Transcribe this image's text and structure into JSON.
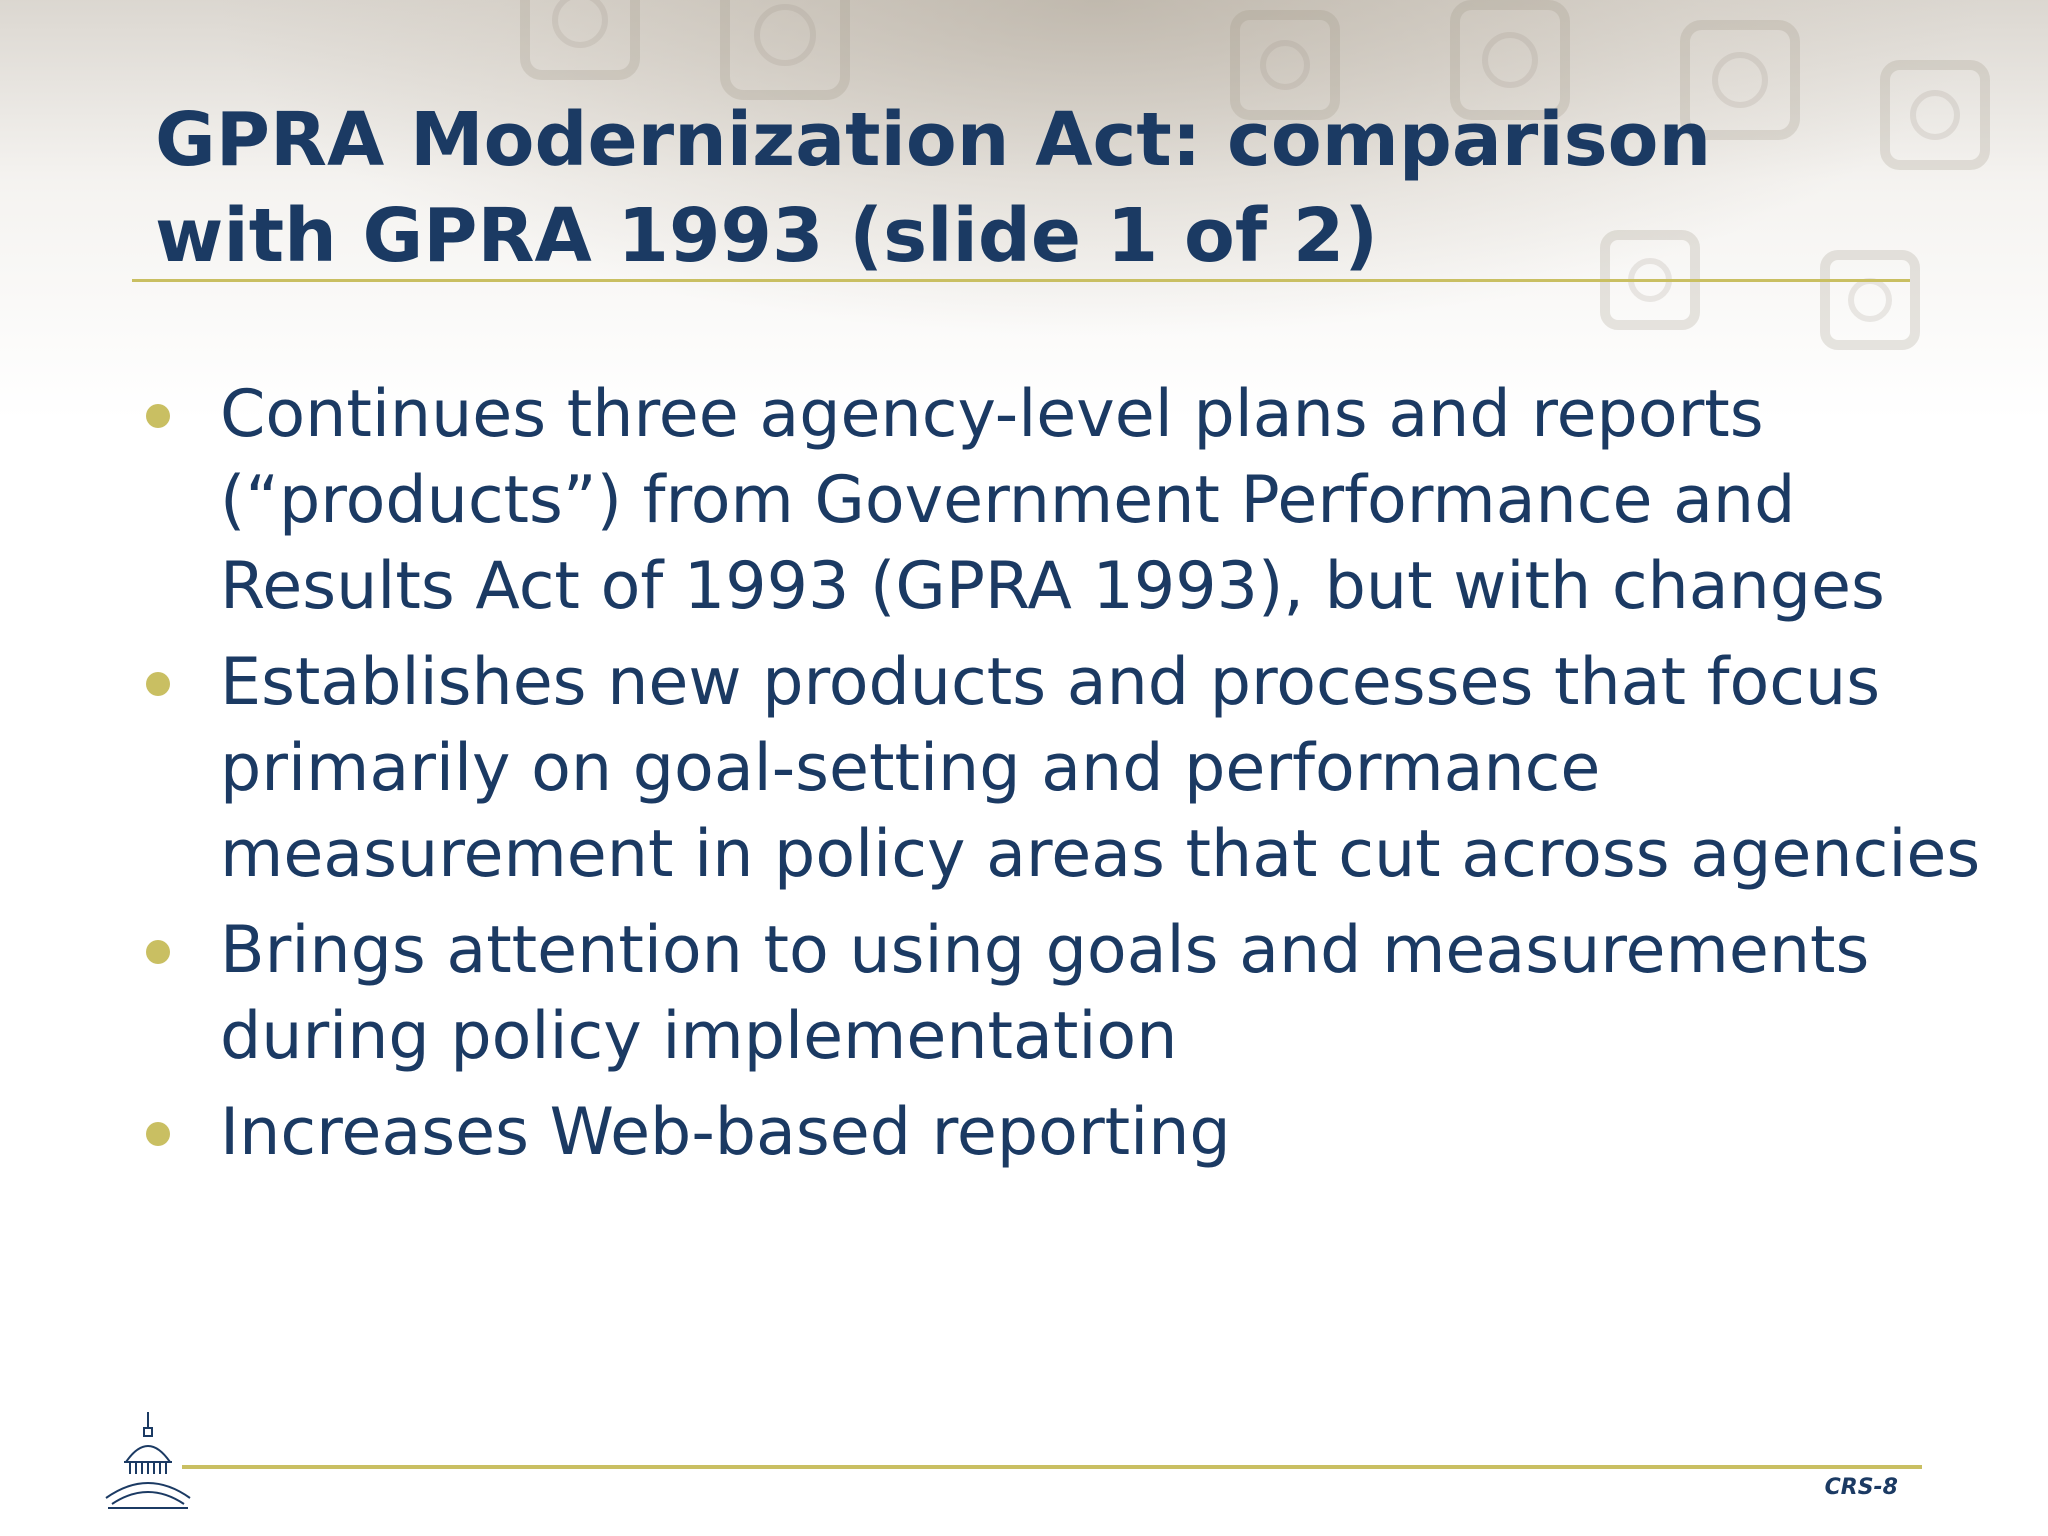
{
  "slide": {
    "title_line1": "GPRA Modernization Act: comparison",
    "title_line2": "with GPRA 1993 (slide 1 of 2)",
    "bullets": [
      {
        "text": "Continues three agency-level plans and reports (“products”) from Government Performance and Results Act of 1993 (GPRA 1993), but with changes"
      },
      {
        "text": "Establishes new products and processes that focus primarily on goal-setting and performance measurement in policy areas that cut across agencies"
      },
      {
        "text": "Brings attention to using goals and measurements during policy implementation"
      },
      {
        "text": "Increases Web-based reporting"
      }
    ],
    "footer": {
      "slide_number": "CRS-8",
      "logo_icon": "capitol-dome-icon"
    }
  },
  "colors": {
    "title_text": "#1b3a63",
    "accent_rule": "#c9bf62",
    "bullet_dot": "#c9bf62"
  }
}
